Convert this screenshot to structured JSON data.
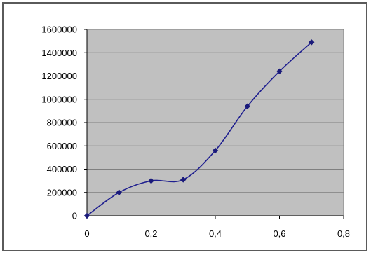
{
  "chart_data": {
    "type": "line",
    "title": "",
    "xlabel": "",
    "ylabel": "",
    "xlim": [
      0,
      0.8
    ],
    "ylim": [
      0,
      1600000
    ],
    "x_ticks": [
      0,
      0.2,
      0.4,
      0.6,
      0.8
    ],
    "x_tick_labels": [
      "0",
      "0,2",
      "0,4",
      "0,6",
      "0,8"
    ],
    "y_ticks": [
      0,
      200000,
      400000,
      600000,
      800000,
      1000000,
      1200000,
      1400000,
      1600000
    ],
    "y_tick_labels": [
      "0",
      "200000",
      "400000",
      "600000",
      "800000",
      "1000000",
      "1200000",
      "1400000",
      "1600000"
    ],
    "grid": "horizontal",
    "legend": "none",
    "series": [
      {
        "x": [
          0,
          0.1,
          0.2,
          0.3,
          0.4,
          0.5,
          0.6,
          0.7
        ],
        "values": [
          0,
          200000,
          300000,
          310000,
          560000,
          940000,
          1240000,
          1490000
        ],
        "smooth": true
      }
    ],
    "colors": {
      "plot_background": "#c0c0c0",
      "gridline": "#7f7f7f",
      "line": "#1f1f8f",
      "marker": "#1a1a7a"
    }
  }
}
